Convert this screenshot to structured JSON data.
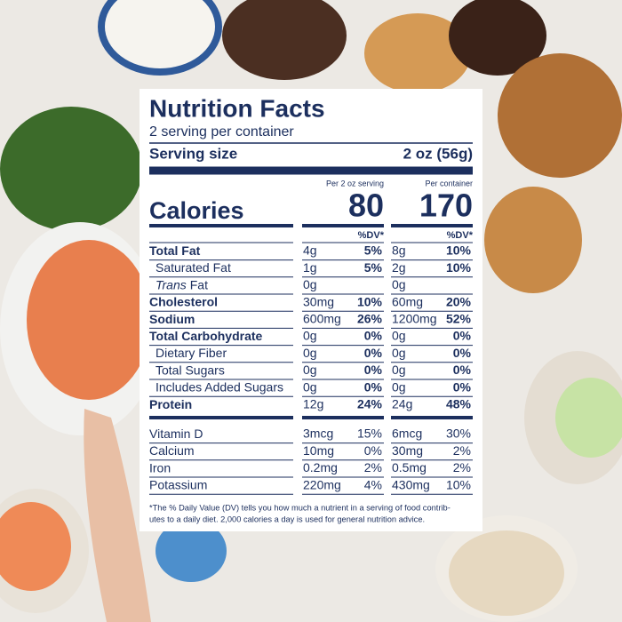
{
  "label": {
    "title": "Nutrition Facts",
    "servings": "2 serving per container",
    "serving_size_label": "Serving size",
    "serving_size_value": "2 oz (56g)",
    "columns": [
      "Per 2 oz serving",
      "Per container"
    ],
    "calories_label": "Calories",
    "calories": [
      "80",
      "170"
    ],
    "dv_header": "%DV*",
    "nutrients": [
      {
        "name": "Total Fat",
        "bold": true,
        "amounts": [
          "4g",
          "8g"
        ],
        "dv": [
          "5%",
          "10%"
        ]
      },
      {
        "name": "Saturated Fat",
        "indent": true,
        "amounts": [
          "1g",
          "2g"
        ],
        "dv": [
          "5%",
          "10%"
        ]
      },
      {
        "prefix": "Trans",
        "name": "Fat",
        "indent": true,
        "amounts": [
          "0g",
          "0g"
        ]
      },
      {
        "name": "Cholesterol",
        "bold": true,
        "amounts": [
          "30mg",
          "60mg"
        ],
        "dv": [
          "10%",
          "20%"
        ]
      },
      {
        "name": "Sodium",
        "bold": true,
        "amounts": [
          "600mg",
          "1200mg"
        ],
        "dv": [
          "26%",
          "52%"
        ]
      },
      {
        "name": "Total Carbohydrate",
        "bold": true,
        "amounts": [
          "0g",
          "0g"
        ],
        "dv": [
          "0%",
          "0%"
        ]
      },
      {
        "name": "Dietary Fiber",
        "indent": true,
        "amounts": [
          "0g",
          "0g"
        ],
        "dv": [
          "0%",
          "0%"
        ]
      },
      {
        "name": "Total Sugars",
        "indent": true,
        "amounts": [
          "0g",
          "0g"
        ],
        "dv": [
          "0%",
          "0%"
        ]
      },
      {
        "name": "Includes Added Sugars",
        "indent": true,
        "amounts": [
          "0g",
          "0g"
        ],
        "dv": [
          "0%",
          "0%"
        ]
      },
      {
        "name": "Protein",
        "bold": true,
        "amounts": [
          "12g",
          "24g"
        ],
        "dv": [
          "24%",
          "48%"
        ]
      }
    ],
    "vitamins": [
      {
        "name": "Vitamin D",
        "amounts": [
          "3mcg",
          "6mcg"
        ],
        "dv": [
          "15%",
          "30%"
        ]
      },
      {
        "name": "Calcium",
        "amounts": [
          "10mg",
          "30mg"
        ],
        "dv": [
          "0%",
          "2%"
        ]
      },
      {
        "name": "Iron",
        "amounts": [
          "0.2mg",
          "0.5mg"
        ],
        "dv": [
          "2%",
          "2%"
        ]
      },
      {
        "name": "Potassium",
        "amounts": [
          "220mg",
          "430mg"
        ],
        "dv": [
          "4%",
          "10%"
        ]
      }
    ],
    "footnote": [
      "*The % Daily Value (DV) tells you how much a nutrient in a serving of food contrib-",
      "utes to a daily diet. 2,000 calories a day is used for general nutrition advice."
    ]
  }
}
